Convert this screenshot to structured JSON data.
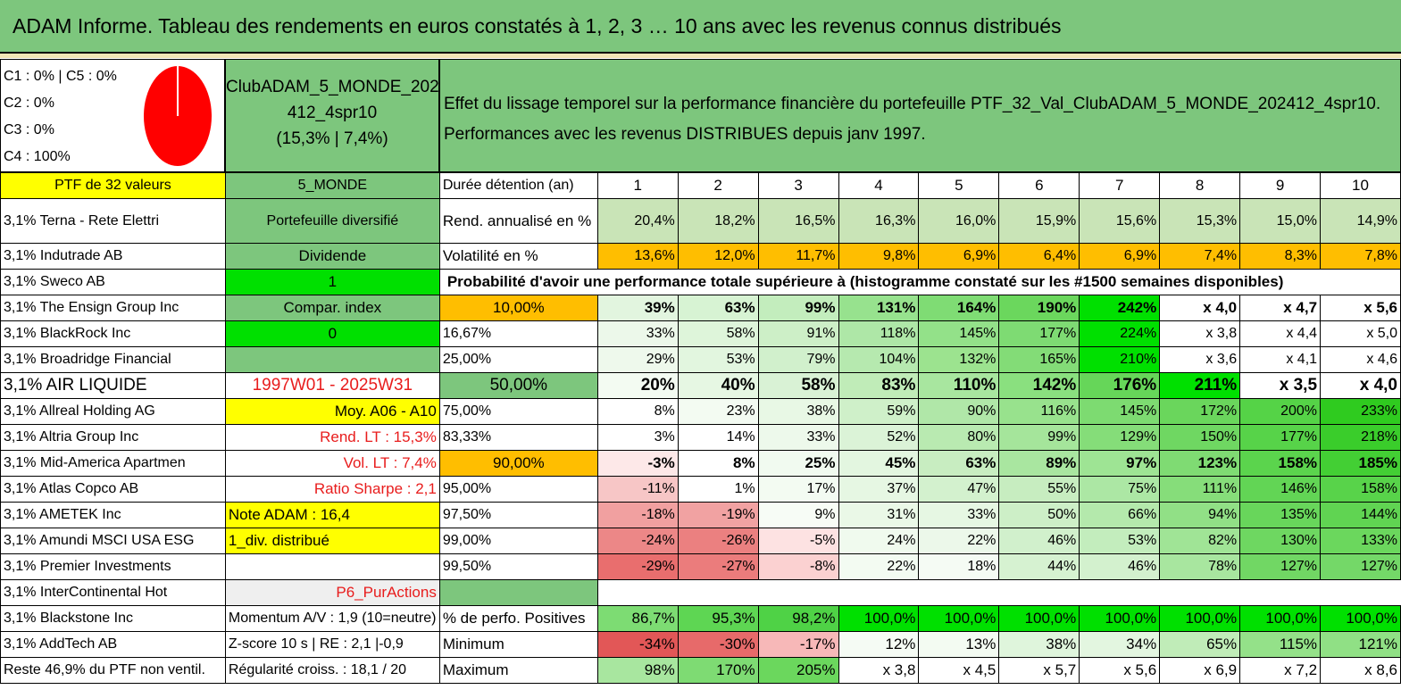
{
  "title": "ADAM Informe. Tableau des rendements en euros constatés à 1, 2, 3 … 10 ans avec les revenus connus distribués",
  "pie": {
    "legend": [
      "C1 : 0% | C5 : 0%",
      "C2 : 0%",
      "C3 : 0%",
      "C4 : 100%"
    ],
    "fill": "#ff0000"
  },
  "portfolio": {
    "name_line1": "ClubADAM_5_MONDE_202",
    "name_line2": "412_4spr10",
    "name_line3": "(15,3% | 7,4%)"
  },
  "effect": {
    "line1": "Effet du lissage temporel sur la performance financière du portefeuille PTF_32_Val_ClubADAM_5_MONDE_202412_4spr10.",
    "line2": "Performances avec les revenus DISTRIBUES depuis janv 1997."
  },
  "colors": {
    "green_header": "#7dc67d",
    "yellow": "#ffff00",
    "orange": "#ffbe00",
    "lime": "#00e000"
  },
  "rows": [
    {
      "c0": "PTF de 32 valeurs",
      "c1": "5_MONDE",
      "c2": "Durée détention (an)",
      "vals": [
        "1",
        "2",
        "3",
        "4",
        "5",
        "6",
        "7",
        "8",
        "9",
        "10"
      ]
    },
    {
      "c0": "3,1% Terna - Rete Elettri",
      "c1": "Portefeuille diversifié",
      "c2": "Rend. annualisé en %",
      "vals": [
        "20,4%",
        "18,2%",
        "16,5%",
        "16,3%",
        "16,0%",
        "15,9%",
        "15,6%",
        "15,3%",
        "15,0%",
        "14,9%"
      ]
    },
    {
      "c0": "3,1% Indutrade AB",
      "c1": "Dividende",
      "c2": "Volatilité en %",
      "vals": [
        "13,6%",
        "12,0%",
        "11,7%",
        "9,8%",
        "6,9%",
        "6,4%",
        "6,9%",
        "7,4%",
        "8,3%",
        "7,8%"
      ]
    },
    {
      "c0": "3,1% Sweco AB",
      "c1": "1",
      "c2": "Probabilité d'avoir une performance totale supérieure à (histogramme constaté sur les #1500 semaines disponibles)",
      "vals": []
    },
    {
      "c0": "3,1% The Ensign Group Inc",
      "c1": "Compar. index",
      "c2": "10,00%",
      "vals": [
        "39%",
        "63%",
        "99%",
        "131%",
        "164%",
        "190%",
        "242%",
        "x 4,0",
        "x 4,7",
        "x 5,6"
      ]
    },
    {
      "c0": "3,1% BlackRock Inc",
      "c1": "0",
      "c2": "16,67%",
      "vals": [
        "33%",
        "58%",
        "91%",
        "118%",
        "145%",
        "177%",
        "224%",
        "x 3,8",
        "x 4,4",
        "x 5,0"
      ]
    },
    {
      "c0": "3,1% Broadridge Financial",
      "c1": "",
      "c2": "25,00%",
      "vals": [
        "29%",
        "53%",
        "79%",
        "104%",
        "132%",
        "165%",
        "210%",
        "x 3,6",
        "x 4,1",
        "x 4,6"
      ]
    },
    {
      "c0": "3,1% AIR LIQUIDE",
      "c1": "1997W01 - 2025W31",
      "c2": "50,00%",
      "vals": [
        "20%",
        "40%",
        "58%",
        "83%",
        "110%",
        "142%",
        "176%",
        "211%",
        "x 3,5",
        "x 4,0"
      ]
    },
    {
      "c0": "3,1% Allreal Holding AG",
      "c1": "Moy. A06 - A10",
      "c2": "75,00%",
      "vals": [
        "8%",
        "23%",
        "38%",
        "59%",
        "90%",
        "116%",
        "145%",
        "172%",
        "200%",
        "233%"
      ]
    },
    {
      "c0": "3,1% Altria Group Inc",
      "c1": "Rend. LT : 15,3%",
      "c2": "83,33%",
      "vals": [
        "3%",
        "14%",
        "33%",
        "52%",
        "80%",
        "99%",
        "129%",
        "150%",
        "177%",
        "218%"
      ]
    },
    {
      "c0": "3,1% Mid-America Apartmen",
      "c1": "Vol. LT : 7,4%",
      "c2": "90,00%",
      "vals": [
        "-3%",
        "8%",
        "25%",
        "45%",
        "63%",
        "89%",
        "97%",
        "123%",
        "158%",
        "185%"
      ]
    },
    {
      "c0": "3,1% Atlas Copco AB",
      "c1": "Ratio Sharpe : 2,1",
      "c2": "95,00%",
      "vals": [
        "-11%",
        "1%",
        "17%",
        "37%",
        "47%",
        "55%",
        "75%",
        "111%",
        "146%",
        "158%"
      ]
    },
    {
      "c0": "3,1% AMETEK Inc",
      "c1": "Note ADAM : 16,4",
      "c2": "97,50%",
      "vals": [
        "-18%",
        "-19%",
        "9%",
        "31%",
        "33%",
        "50%",
        "66%",
        "94%",
        "135%",
        "144%"
      ]
    },
    {
      "c0": "3,1% Amundi MSCI USA ESG",
      "c1": "1_div. distribué",
      "c2": "99,00%",
      "vals": [
        "-24%",
        "-26%",
        "-5%",
        "24%",
        "22%",
        "46%",
        "53%",
        "82%",
        "130%",
        "133%"
      ]
    },
    {
      "c0": "3,1% Premier Investments",
      "c1": "",
      "c2": "99,50%",
      "vals": [
        "-29%",
        "-27%",
        "-8%",
        "22%",
        "18%",
        "44%",
        "46%",
        "78%",
        "127%",
        "127%"
      ]
    },
    {
      "c0": "3,1% InterContinental Hot",
      "c1": "P6_PurActions",
      "c2": "",
      "vals": []
    },
    {
      "c0": "3,1% Blackstone Inc",
      "c1": "Momentum A/V : 1,9 (10=neutre)",
      "c2": "% de perfo. Positives",
      "vals": [
        "86,7%",
        "95,3%",
        "98,2%",
        "100,0%",
        "100,0%",
        "100,0%",
        "100,0%",
        "100,0%",
        "100,0%",
        "100,0%"
      ]
    },
    {
      "c0": "3,1% AddTech AB",
      "c1": "Z-score 10 s | RE : 2,1 |-0,9",
      "c2": "Minimum",
      "vals": [
        "-34%",
        "-30%",
        "-17%",
        "12%",
        "13%",
        "38%",
        "34%",
        "65%",
        "115%",
        "121%"
      ]
    },
    {
      "c0": "Reste 46,9% du PTF non ventil.",
      "c1": "Régularité croiss. : 18,1 / 20",
      "c2": "Maximum",
      "vals": [
        "98%",
        "170%",
        "205%",
        "x 3,8",
        "x 4,5",
        "x 5,7",
        "x 5,6",
        "x 6,9",
        "x 7,2",
        "x 8,6"
      ]
    }
  ]
}
